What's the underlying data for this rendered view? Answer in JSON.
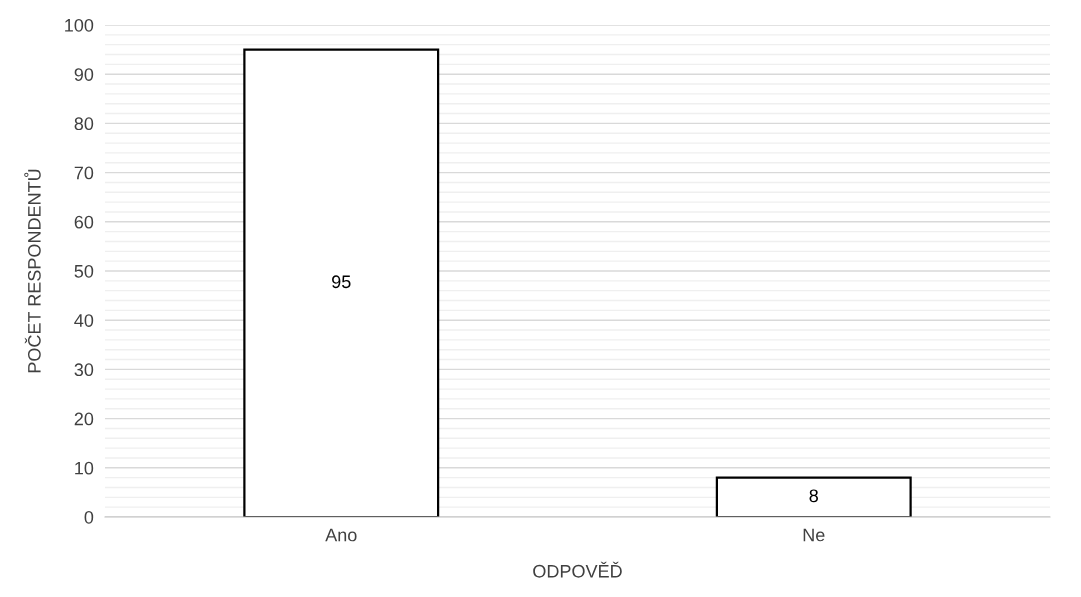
{
  "chart_data": {
    "type": "bar",
    "xlabel": "ODPOVĚĎ",
    "ylabel": "POČET RESPONDENTŮ",
    "categories": [
      "Ano",
      "Ne"
    ],
    "values": [
      95,
      8
    ],
    "color": "#ffffff",
    "data_labels": true,
    "grid": "y",
    "legend": false,
    "ylim": [
      0,
      100
    ],
    "yticks": [
      0,
      {
        "value": 2,
        "label": null
      },
      {
        "value": 4,
        "label": null
      },
      {
        "value": 6,
        "label": null
      },
      {
        "value": 8,
        "label": null
      },
      10,
      {
        "value": 12,
        "label": null
      },
      {
        "value": 14,
        "label": null
      },
      {
        "value": 16,
        "label": null
      },
      {
        "value": 18,
        "label": null
      },
      20,
      {
        "value": 22,
        "label": null
      },
      {
        "value": 24,
        "label": null
      },
      {
        "value": 26,
        "label": null
      },
      {
        "value": 28,
        "label": null
      },
      30,
      {
        "value": 32,
        "label": null
      },
      {
        "value": 34,
        "label": null
      },
      {
        "value": 36,
        "label": null
      },
      {
        "value": 38,
        "label": null
      },
      40,
      {
        "value": 42,
        "label": null
      },
      {
        "value": 44,
        "label": null
      },
      {
        "value": 46,
        "label": null
      },
      {
        "value": 48,
        "label": null
      },
      50,
      {
        "value": 52,
        "label": null
      },
      {
        "value": 54,
        "label": null
      },
      {
        "value": 56,
        "label": null
      },
      {
        "value": 58,
        "label": null
      },
      60,
      {
        "value": 62,
        "label": null
      },
      {
        "value": 64,
        "label": null
      },
      {
        "value": 66,
        "label": null
      },
      {
        "value": 68,
        "label": null
      },
      70,
      {
        "value": 72,
        "label": null
      },
      {
        "value": 74,
        "label": null
      },
      {
        "value": 76,
        "label": null
      },
      {
        "value": 78,
        "label": null
      },
      80,
      {
        "value": 82,
        "label": null
      },
      {
        "value": 84,
        "label": null
      },
      {
        "value": 86,
        "label": null
      },
      {
        "value": 88,
        "label": null
      },
      90,
      {
        "value": 92,
        "label": null
      },
      {
        "value": 94,
        "label": null
      },
      {
        "value": 96,
        "label": null
      },
      {
        "value": 98,
        "label": null
      },
      100
    ]
  }
}
